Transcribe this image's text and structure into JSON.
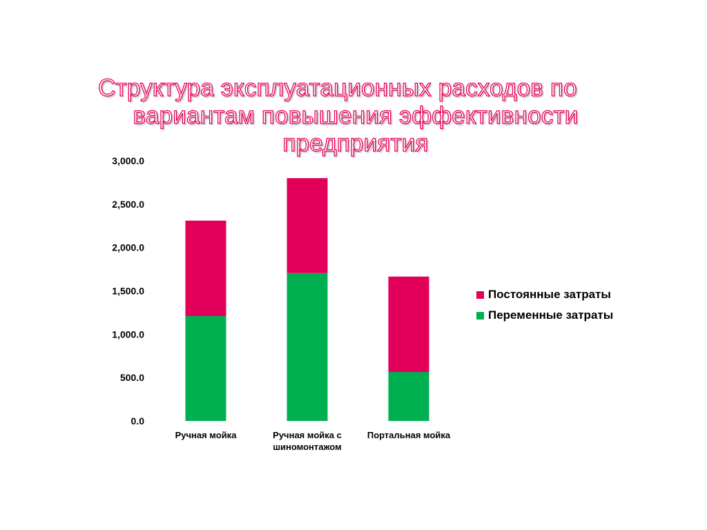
{
  "title": {
    "lines": [
      "Структура эксплуатационных расходов по",
      "вариантам повышения эффективности",
      "предприятия"
    ]
  },
  "colors": {
    "fixed": "#e2005a",
    "variable": "#00b050",
    "title_outline": "#e8005a"
  },
  "chart_data": {
    "type": "bar",
    "stacked": true,
    "title": "Структура эксплуатационных расходов по вариантам повышения эффективности предприятия",
    "categories": [
      [
        "Ручная мойка"
      ],
      [
        "Ручная мойка с",
        "шиномонтажом"
      ],
      [
        "Портальная мойка"
      ]
    ],
    "series": [
      {
        "name": "Переменные затраты",
        "color": "#00b050",
        "values": [
          1210,
          1705,
          565
        ]
      },
      {
        "name": "Постоянные затраты",
        "color": "#e2005a",
        "values": [
          1100,
          1095,
          1100
        ]
      }
    ],
    "ylim": [
      0,
      3000
    ],
    "yticks": [
      0,
      500,
      1000,
      1500,
      2000,
      2500,
      3000
    ],
    "ytick_labels": [
      "0.0",
      "500.0",
      "1,000.0",
      "1,500.0",
      "2,000.0",
      "2,500.0",
      "3,000.0"
    ],
    "grid": false,
    "legend_position": "right",
    "legend_order": [
      "Постоянные затраты",
      "Переменные затраты"
    ]
  }
}
